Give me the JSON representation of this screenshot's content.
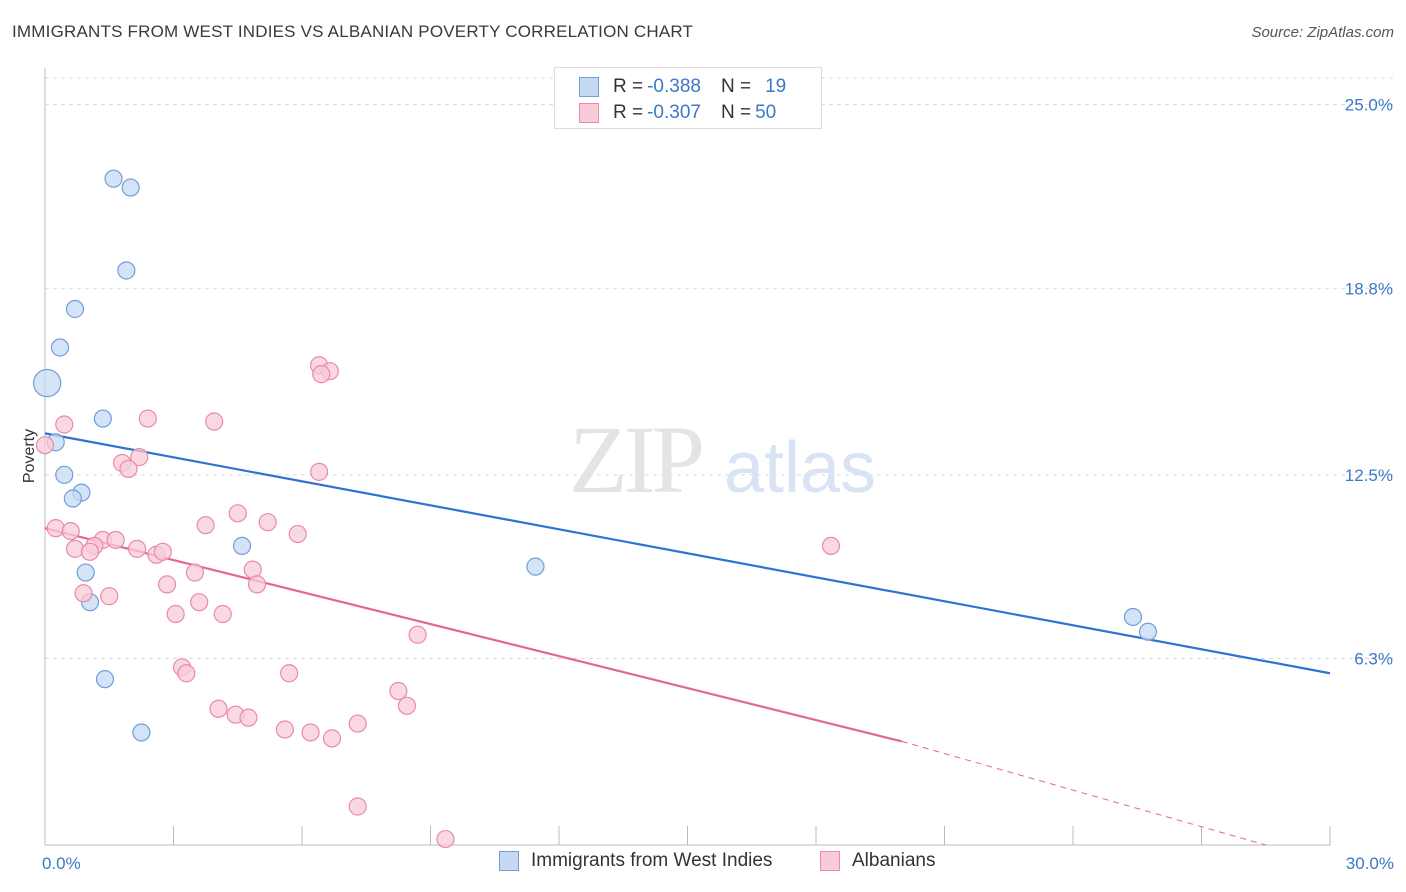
{
  "title": "IMMIGRANTS FROM WEST INDIES VS ALBANIAN POVERTY CORRELATION CHART",
  "source": "Source: ZipAtlas.com",
  "watermark": {
    "zip": "ZIP",
    "atlas": "atlas"
  },
  "colors": {
    "blue": "#6f9fdc",
    "blue_fill": "#c5d9f3",
    "blue_line": "#2e72d2",
    "pink": "#ea8aa8",
    "pink_fill": "#f8cbd8",
    "pink_line": "#e2688e",
    "tick_text": "#3c78c8",
    "grid": "#d9d9d9"
  },
  "legend": {
    "rows": [
      {
        "r_label": "R = ",
        "r_value": "-0.388",
        "n_label": "N = ",
        "n_value": "19"
      },
      {
        "r_label": "R = ",
        "r_value": "-0.307",
        "n_label": "N = ",
        "n_value": "50"
      }
    ]
  },
  "chart_data": {
    "type": "scatter",
    "title": "IMMIGRANTS FROM WEST INDIES VS ALBANIAN POVERTY CORRELATION CHART",
    "xlabel": "",
    "ylabel": "Poverty",
    "xlim": [
      0,
      30
    ],
    "ylim": [
      0,
      25.9
    ],
    "x_tick_labels": [
      "0.0%",
      "30.0%"
    ],
    "y_ticks": [
      6.3,
      12.5,
      18.8,
      25.0
    ],
    "y_tick_labels": [
      "6.3%",
      "12.5%",
      "18.8%",
      "25.0%"
    ],
    "grid": true,
    "series": [
      {
        "name": "Immigrants from West Indies",
        "color": "blue",
        "points": [
          [
            1.6,
            22.5
          ],
          [
            2.0,
            22.2
          ],
          [
            1.9,
            19.4
          ],
          [
            0.7,
            18.1
          ],
          [
            0.35,
            16.8
          ],
          [
            0.05,
            15.6
          ],
          [
            1.35,
            14.4
          ],
          [
            0.25,
            13.6
          ],
          [
            0.45,
            12.5
          ],
          [
            0.85,
            11.9
          ],
          [
            0.65,
            11.7
          ],
          [
            4.6,
            10.1
          ],
          [
            0.95,
            9.2
          ],
          [
            1.05,
            8.2
          ],
          [
            1.4,
            5.6
          ],
          [
            2.25,
            3.8
          ],
          [
            11.45,
            9.4
          ],
          [
            25.4,
            7.7
          ],
          [
            25.75,
            7.2
          ]
        ],
        "point_sizes": [
          1,
          1,
          1,
          1,
          1,
          1.6,
          1,
          1,
          1,
          1,
          1,
          1,
          1,
          1,
          1,
          1,
          1,
          1,
          1
        ],
        "trend": {
          "x": [
            0,
            30
          ],
          "y": [
            13.9,
            5.8
          ]
        }
      },
      {
        "name": "Albanians",
        "color": "pink",
        "points": [
          [
            6.4,
            16.2
          ],
          [
            6.65,
            16.0
          ],
          [
            6.45,
            15.9
          ],
          [
            0.45,
            14.2
          ],
          [
            2.4,
            14.4
          ],
          [
            3.95,
            14.3
          ],
          [
            0.0,
            13.5
          ],
          [
            2.2,
            13.1
          ],
          [
            1.8,
            12.9
          ],
          [
            1.95,
            12.7
          ],
          [
            6.4,
            12.6
          ],
          [
            0.25,
            10.7
          ],
          [
            0.6,
            10.6
          ],
          [
            4.5,
            11.2
          ],
          [
            5.2,
            10.9
          ],
          [
            3.75,
            10.8
          ],
          [
            5.9,
            10.5
          ],
          [
            1.35,
            10.3
          ],
          [
            1.65,
            10.3
          ],
          [
            1.15,
            10.1
          ],
          [
            0.7,
            10.0
          ],
          [
            1.05,
            9.9
          ],
          [
            2.15,
            10.0
          ],
          [
            2.6,
            9.8
          ],
          [
            2.75,
            9.9
          ],
          [
            3.5,
            9.2
          ],
          [
            4.85,
            9.3
          ],
          [
            4.95,
            8.8
          ],
          [
            2.85,
            8.8
          ],
          [
            0.9,
            8.5
          ],
          [
            1.5,
            8.4
          ],
          [
            3.6,
            8.2
          ],
          [
            3.05,
            7.8
          ],
          [
            4.15,
            7.8
          ],
          [
            8.7,
            7.1
          ],
          [
            3.2,
            6.0
          ],
          [
            3.3,
            5.8
          ],
          [
            5.7,
            5.8
          ],
          [
            8.25,
            5.2
          ],
          [
            8.45,
            4.7
          ],
          [
            4.05,
            4.6
          ],
          [
            4.45,
            4.4
          ],
          [
            4.75,
            4.3
          ],
          [
            5.6,
            3.9
          ],
          [
            6.2,
            3.8
          ],
          [
            6.7,
            3.6
          ],
          [
            7.3,
            4.1
          ],
          [
            7.3,
            1.3
          ],
          [
            9.35,
            0.2
          ],
          [
            18.35,
            10.1
          ]
        ],
        "trend": {
          "x": [
            0,
            20
          ],
          "y": [
            10.7,
            3.5
          ]
        },
        "trend_dashed": {
          "x": [
            20,
            28.5
          ],
          "y": [
            3.5,
            0.0
          ]
        }
      }
    ]
  },
  "bottom_legend": {
    "items": [
      {
        "label": "Immigrants from West Indies"
      },
      {
        "label": "Albanians"
      }
    ]
  }
}
